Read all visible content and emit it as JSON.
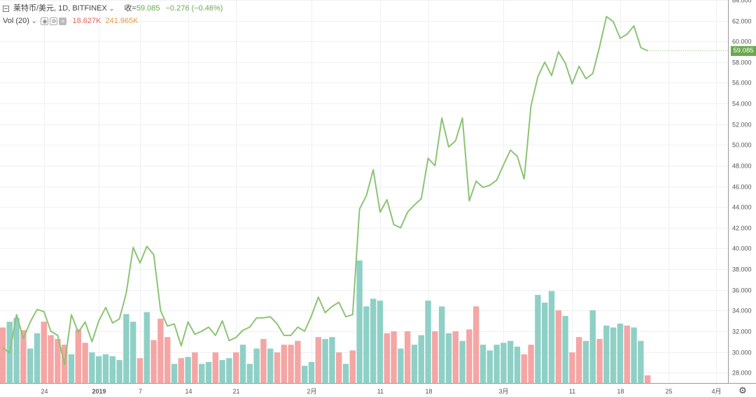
{
  "header": {
    "symbol": "莱特币/美元, 1D, BITFINEX",
    "close_label": "收",
    "close_value": "59.085",
    "change": "−0.276 (−0.46%)",
    "vol_label": "Vol (20)",
    "vol_value_1": "18.627K",
    "vol_value_2": "241.965K"
  },
  "price_tag": "59.085",
  "colors": {
    "line": "#8cc474",
    "vol_up": "#8fd0c6",
    "vol_down": "#f4a6a4",
    "tag": "#6ba84f"
  },
  "chart_data": {
    "type": "line",
    "title": "莱特币/美元, 1D, BITFINEX",
    "y_axis_position": "right",
    "ylim": [
      27,
      64
    ],
    "y_ticks": [
      "64.000",
      "62.000",
      "60.000",
      "58.000",
      "56.000",
      "54.000",
      "52.000",
      "50.000",
      "48.000",
      "46.000",
      "44.000",
      "42.000",
      "40.000",
      "38.000",
      "36.000",
      "34.000",
      "32.000",
      "30.000",
      "28.000"
    ],
    "x_ticks": [
      {
        "label": "24",
        "index": 6
      },
      {
        "label": "2019",
        "index": 14,
        "bold": true
      },
      {
        "label": "7",
        "index": 20
      },
      {
        "label": "14",
        "index": 27
      },
      {
        "label": "21",
        "index": 34
      },
      {
        "label": "2月",
        "index": 45
      },
      {
        "label": "11",
        "index": 55
      },
      {
        "label": "18",
        "index": 62
      },
      {
        "label": "3月",
        "index": 73
      },
      {
        "label": "11",
        "index": 83
      },
      {
        "label": "18",
        "index": 90
      },
      {
        "label": "25",
        "index": 97
      },
      {
        "label": "4月",
        "index": 104
      }
    ],
    "series": [
      {
        "role": "price",
        "values": [
          30.4,
          29.9,
          33.6,
          31.3,
          32.9,
          34.1,
          33.9,
          32.0,
          31.6,
          28.8,
          33.6,
          31.9,
          32.9,
          31.0,
          33.0,
          34.3,
          32.8,
          33.2,
          35.7,
          40.1,
          38.6,
          40.2,
          39.4,
          34.0,
          32.5,
          32.7,
          30.6,
          32.9,
          31.7,
          32.0,
          32.4,
          31.6,
          33.0,
          31.1,
          31.4,
          32.1,
          32.4,
          33.3,
          33.3,
          33.4,
          32.7,
          31.6,
          31.6,
          32.4,
          32.0,
          33.5,
          35.3,
          33.8,
          34.4,
          34.8,
          33.4,
          33.6,
          43.8,
          45.1,
          47.6,
          43.5,
          44.7,
          42.3,
          42.0,
          43.5,
          44.2,
          44.8,
          48.7,
          48.0,
          52.6,
          49.8,
          50.4,
          52.6,
          44.6,
          46.5,
          45.9,
          46.1,
          46.6,
          48.1,
          49.5,
          48.9,
          46.7,
          53.8,
          56.6,
          58.0,
          56.7,
          59.0,
          57.9,
          55.9,
          57.6,
          56.4,
          56.9,
          59.5,
          62.4,
          61.9,
          60.3,
          60.7,
          61.5,
          59.4,
          59.1
        ]
      },
      {
        "role": "volume",
        "ylim": [
          0,
          270
        ],
        "values": [
          145,
          160,
          170,
          138,
          90,
          130,
          160,
          125,
          115,
          100,
          75,
          140,
          105,
          80,
          70,
          75,
          70,
          60,
          180,
          160,
          65,
          185,
          112,
          168,
          120,
          50,
          65,
          68,
          80,
          50,
          55,
          80,
          60,
          65,
          80,
          100,
          50,
          90,
          115,
          90,
          80,
          100,
          100,
          110,
          45,
          55,
          120,
          115,
          120,
          80,
          50,
          85,
          320,
          200,
          220,
          215,
          130,
          135,
          90,
          135,
          100,
          125,
          215,
          135,
          200,
          130,
          135,
          110,
          140,
          200,
          100,
          85,
          100,
          105,
          110,
          95,
          75,
          100,
          230,
          210,
          240,
          190,
          175,
          80,
          120,
          110,
          190,
          115,
          150,
          145,
          155,
          150,
          145,
          110,
          20
        ],
        "up_down": [
          "d",
          "u",
          "u",
          "d",
          "u",
          "u",
          "d",
          "d",
          "d",
          "d",
          "u",
          "d",
          "d",
          "u",
          "u",
          "u",
          "u",
          "u",
          "u",
          "u",
          "d",
          "u",
          "d",
          "d",
          "d",
          "u",
          "d",
          "u",
          "d",
          "u",
          "u",
          "d",
          "u",
          "u",
          "d",
          "u",
          "u",
          "u",
          "d",
          "u",
          "d",
          "d",
          "d",
          "d",
          "u",
          "u",
          "d",
          "u",
          "u",
          "d",
          "u",
          "d",
          "u",
          "u",
          "u",
          "u",
          "d",
          "d",
          "u",
          "d",
          "u",
          "u",
          "u",
          "d",
          "u",
          "u",
          "d",
          "u",
          "d",
          "d",
          "u",
          "u",
          "u",
          "u",
          "u",
          "u",
          "d",
          "d",
          "u",
          "u",
          "u",
          "d",
          "u",
          "d",
          "d",
          "u",
          "u",
          "d",
          "u",
          "u",
          "u",
          "d",
          "u",
          "u",
          "d"
        ]
      }
    ]
  }
}
